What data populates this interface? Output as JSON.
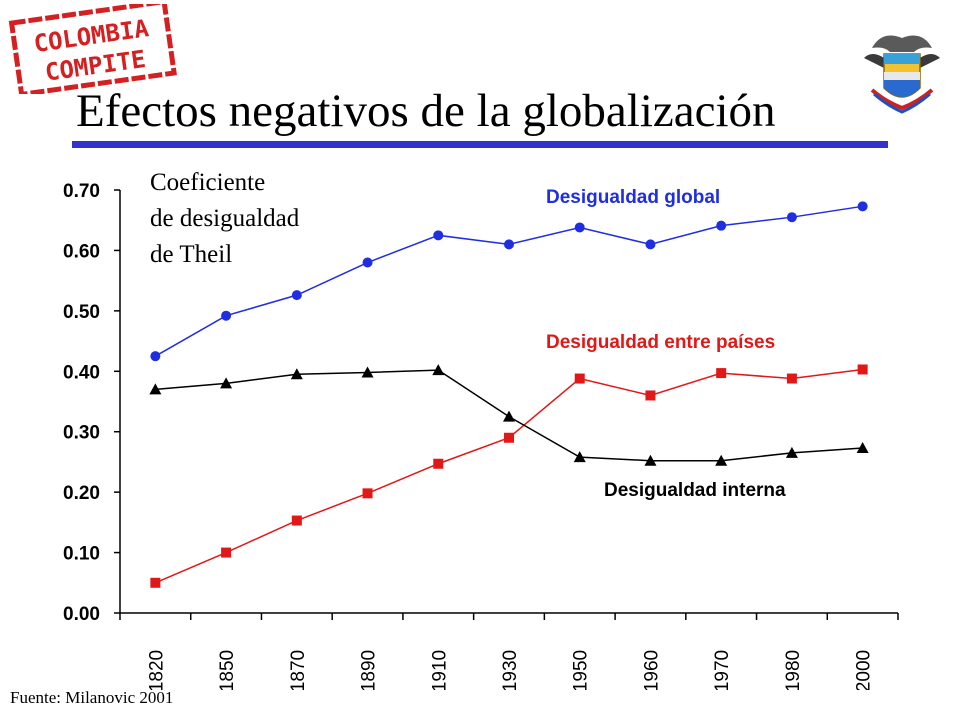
{
  "logo": {
    "line1": "COLOMBIA",
    "line2": "COMPITE",
    "color": "#d42020"
  },
  "coat_of_arms": {
    "icon": "colombia-coat-of-arms-icon"
  },
  "slide": {
    "title": "Efectos negativos de la globalización",
    "rule_color": "#3333cc"
  },
  "source_note": "Fuente: Milanovic 2001",
  "chart_data": {
    "type": "line",
    "title": "",
    "ylabel": [
      "Coeficiente",
      "de desigualdad",
      "de Theil"
    ],
    "xlabel": "",
    "categories": [
      "1820",
      "1850",
      "1870",
      "1890",
      "1910",
      "1930",
      "1950",
      "1960",
      "1970",
      "1980",
      "2000"
    ],
    "ylim": [
      0,
      0.7
    ],
    "yticks": [
      "0.00",
      "0.10",
      "0.20",
      "0.30",
      "0.40",
      "0.50",
      "0.60",
      "0.70"
    ],
    "grid": false,
    "series": [
      {
        "name": "Desigualdad global",
        "color": "#1e2ee0",
        "marker": "circle",
        "values": [
          0.425,
          0.492,
          0.526,
          0.58,
          0.625,
          0.61,
          0.638,
          0.61,
          0.641,
          0.655,
          0.673
        ]
      },
      {
        "name": "Desigualdad entre países",
        "color": "#e01818",
        "marker": "square",
        "values": [
          0.05,
          0.1,
          0.153,
          0.198,
          0.247,
          0.29,
          0.388,
          0.36,
          0.397,
          0.388,
          0.403
        ]
      },
      {
        "name": "Desigualdad interna",
        "color": "#000000",
        "marker": "triangle",
        "values": [
          0.37,
          0.38,
          0.395,
          0.398,
          0.402,
          0.325,
          0.258,
          0.252,
          0.252,
          0.265,
          0.273
        ]
      }
    ]
  }
}
